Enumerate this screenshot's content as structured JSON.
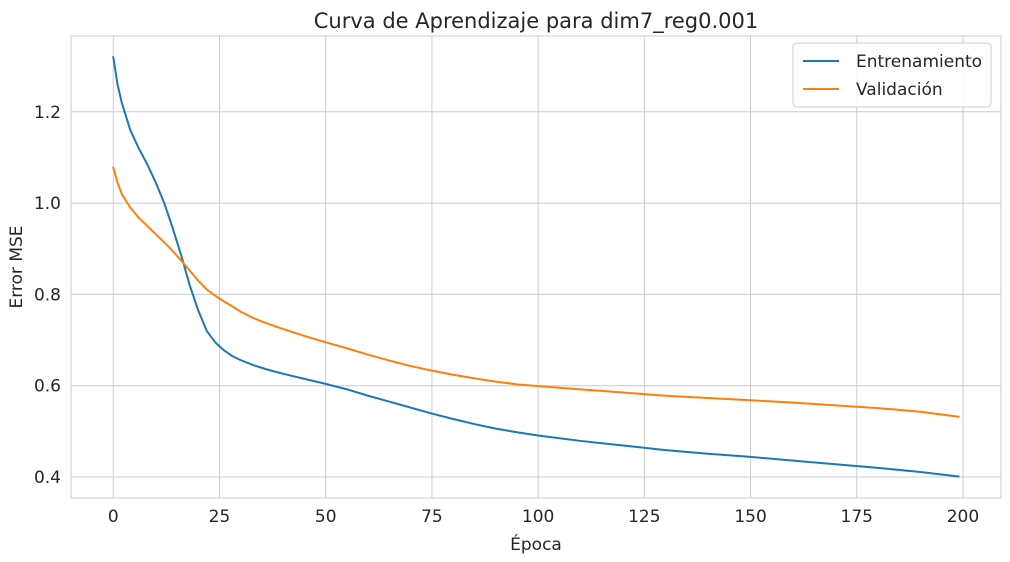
{
  "chart_data": {
    "type": "line",
    "title": "Curva de Aprendizaje para dim7_reg0.001",
    "xlabel": "Época",
    "ylabel": "Error MSE",
    "xlim": [
      -9.95,
      208.95
    ],
    "ylim": [
      0.354,
      1.366
    ],
    "xticks": [
      0,
      25,
      50,
      75,
      100,
      125,
      150,
      175,
      200
    ],
    "yticks": [
      0.4,
      0.6,
      0.8,
      1.0,
      1.2
    ],
    "xtick_labels": [
      "0",
      "25",
      "50",
      "75",
      "100",
      "125",
      "150",
      "175",
      "200"
    ],
    "ytick_labels": [
      "0.4",
      "0.6",
      "0.8",
      "1.0",
      "1.2"
    ],
    "grid": true,
    "legend_position": "top-right",
    "series": [
      {
        "name": "Entrenamiento",
        "color": "#1f77b4",
        "x": [
          0,
          1,
          2,
          4,
          6,
          8,
          10,
          12,
          14,
          16,
          18,
          20,
          22,
          24,
          26,
          28,
          30,
          33,
          36,
          40,
          45,
          50,
          55,
          60,
          65,
          70,
          75,
          80,
          85,
          90,
          95,
          100,
          110,
          120,
          130,
          140,
          150,
          160,
          170,
          180,
          190,
          199
        ],
        "y": [
          1.32,
          1.26,
          1.22,
          1.16,
          1.12,
          1.085,
          1.045,
          1.0,
          0.945,
          0.885,
          0.82,
          0.765,
          0.72,
          0.695,
          0.678,
          0.665,
          0.656,
          0.645,
          0.636,
          0.626,
          0.615,
          0.604,
          0.592,
          0.578,
          0.565,
          0.552,
          0.539,
          0.527,
          0.516,
          0.506,
          0.498,
          0.491,
          0.479,
          0.469,
          0.459,
          0.451,
          0.444,
          0.436,
          0.428,
          0.42,
          0.411,
          0.401
        ]
      },
      {
        "name": "Validación",
        "color": "#ff7f0e",
        "x": [
          0,
          1,
          2,
          4,
          6,
          8,
          10,
          12,
          14,
          16,
          18,
          20,
          22,
          24,
          26,
          28,
          30,
          33,
          36,
          40,
          45,
          50,
          55,
          60,
          65,
          70,
          75,
          80,
          85,
          90,
          95,
          100,
          110,
          120,
          130,
          140,
          150,
          160,
          170,
          180,
          190,
          199
        ],
        "y": [
          1.078,
          1.045,
          1.02,
          0.99,
          0.968,
          0.95,
          0.932,
          0.914,
          0.895,
          0.874,
          0.852,
          0.83,
          0.811,
          0.797,
          0.785,
          0.774,
          0.762,
          0.748,
          0.737,
          0.724,
          0.709,
          0.695,
          0.682,
          0.668,
          0.655,
          0.643,
          0.633,
          0.624,
          0.616,
          0.609,
          0.603,
          0.599,
          0.592,
          0.585,
          0.578,
          0.573,
          0.568,
          0.563,
          0.557,
          0.551,
          0.543,
          0.532
        ]
      }
    ]
  }
}
